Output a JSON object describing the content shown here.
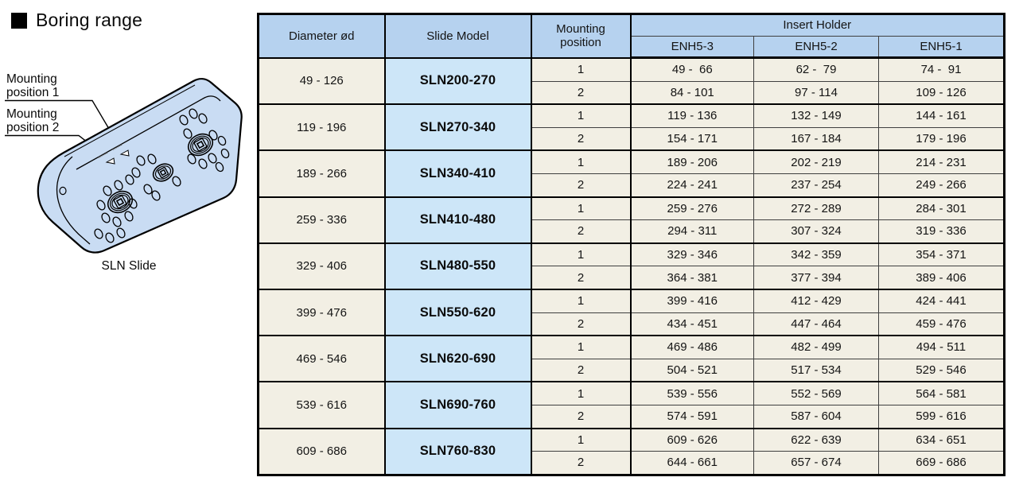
{
  "page": {
    "title": "Boring range"
  },
  "diagram": {
    "label1_line1": "Mounting",
    "label1_line2": "position 1",
    "label2_line1": "Mounting",
    "label2_line2": "position 2",
    "caption": "SLN Slide"
  },
  "table": {
    "headers": {
      "diameter": "Diameter ød",
      "slide_model": "Slide Model",
      "mounting_position": "Mounting position",
      "insert_holder": "Insert Holder",
      "enh_columns": [
        "ENH5-3",
        "ENH5-2",
        "ENH5-1"
      ]
    },
    "groups": [
      {
        "diameter": "49 - 126",
        "model": "SLN200-270",
        "rows": [
          {
            "position": "1",
            "values": [
              "49 -  66",
              "62 -  79",
              "74 -  91"
            ]
          },
          {
            "position": "2",
            "values": [
              "84 - 101",
              "97 - 114",
              "109 - 126"
            ]
          }
        ]
      },
      {
        "diameter": "119 - 196",
        "model": "SLN270-340",
        "rows": [
          {
            "position": "1",
            "values": [
              "119 - 136",
              "132 - 149",
              "144 - 161"
            ]
          },
          {
            "position": "2",
            "values": [
              "154 - 171",
              "167 - 184",
              "179 - 196"
            ]
          }
        ]
      },
      {
        "diameter": "189 - 266",
        "model": "SLN340-410",
        "rows": [
          {
            "position": "1",
            "values": [
              "189 - 206",
              "202 - 219",
              "214 - 231"
            ]
          },
          {
            "position": "2",
            "values": [
              "224 - 241",
              "237 - 254",
              "249 - 266"
            ]
          }
        ]
      },
      {
        "diameter": "259 - 336",
        "model": "SLN410-480",
        "rows": [
          {
            "position": "1",
            "values": [
              "259 - 276",
              "272 - 289",
              "284 - 301"
            ]
          },
          {
            "position": "2",
            "values": [
              "294 - 311",
              "307 - 324",
              "319 - 336"
            ]
          }
        ]
      },
      {
        "diameter": "329 - 406",
        "model": "SLN480-550",
        "rows": [
          {
            "position": "1",
            "values": [
              "329 - 346",
              "342 - 359",
              "354 - 371"
            ]
          },
          {
            "position": "2",
            "values": [
              "364 - 381",
              "377 - 394",
              "389 - 406"
            ]
          }
        ]
      },
      {
        "diameter": "399 - 476",
        "model": "SLN550-620",
        "rows": [
          {
            "position": "1",
            "values": [
              "399 - 416",
              "412 - 429",
              "424 - 441"
            ]
          },
          {
            "position": "2",
            "values": [
              "434 - 451",
              "447 - 464",
              "459 - 476"
            ]
          }
        ]
      },
      {
        "diameter": "469 - 546",
        "model": "SLN620-690",
        "rows": [
          {
            "position": "1",
            "values": [
              "469 - 486",
              "482 - 499",
              "494 - 511"
            ]
          },
          {
            "position": "2",
            "values": [
              "504 - 521",
              "517 - 534",
              "529 - 546"
            ]
          }
        ]
      },
      {
        "diameter": "539 - 616",
        "model": "SLN690-760",
        "rows": [
          {
            "position": "1",
            "values": [
              "539 - 556",
              "552 - 569",
              "564 - 581"
            ]
          },
          {
            "position": "2",
            "values": [
              "574 - 591",
              "587 - 604",
              "599 - 616"
            ]
          }
        ]
      },
      {
        "diameter": "609 - 686",
        "model": "SLN760-830",
        "rows": [
          {
            "position": "1",
            "values": [
              "609 - 626",
              "622 - 639",
              "634 - 651"
            ]
          },
          {
            "position": "2",
            "values": [
              "644 - 661",
              "657 - 674",
              "669 - 686"
            ]
          }
        ]
      }
    ]
  },
  "colors": {
    "header_blue": "#b6d2ef",
    "model_blue": "#cde6f8",
    "row_cream": "#f2efe4",
    "diagram_fill": "#c9dcf3",
    "line_black": "#000000"
  }
}
